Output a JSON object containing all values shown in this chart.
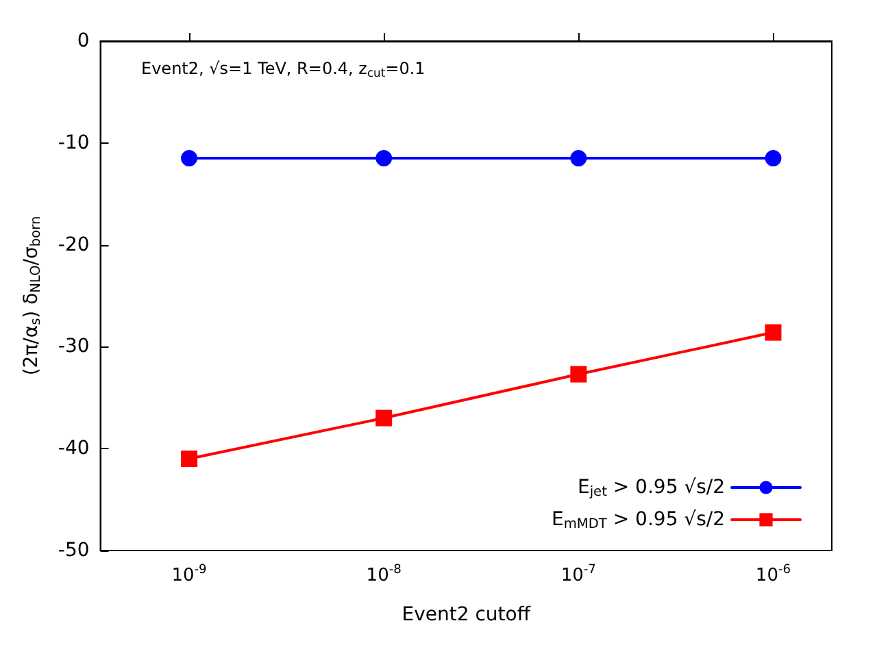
{
  "chart_data": {
    "type": "line",
    "annotations": [
      "Event2, √s=1 TeV, R=0.4, z$_{cut}$=0.1"
    ],
    "xlabel": "Event2 cutoff",
    "ylabel": "(2π/α$_{s}$) δ$_{NLO}$/σ$_{born}$",
    "x": [
      1e-09,
      1e-08,
      1e-07,
      1e-06
    ],
    "log": "x",
    "xlim": [
      3.5e-10,
      2e-06
    ],
    "xticks": [
      {
        "value": 1e-09,
        "label": "10$^{-9}$"
      },
      {
        "value": 1e-08,
        "label": "10$^{-8}$"
      },
      {
        "value": 1e-07,
        "label": "10$^{-7}$"
      },
      {
        "value": 1e-06,
        "label": "10$^{-6}$"
      }
    ],
    "ylim": [
      -50,
      0
    ],
    "yticks": [
      -50,
      -40,
      -30,
      -20,
      -10,
      0
    ],
    "grid": false,
    "legend": "bottom right",
    "series": [
      {
        "name": "E$_{jet}$ > 0.95 √s/2",
        "color": "#0000ff",
        "marker": "circle",
        "values": [
          -11.5,
          -11.5,
          -11.5,
          -11.5
        ]
      },
      {
        "name": "E$_{mMDT}$ > 0.95 √s/2",
        "color": "#ff0000",
        "marker": "square",
        "values": [
          -41.0,
          -37.0,
          -32.7,
          -28.6
        ]
      }
    ]
  }
}
